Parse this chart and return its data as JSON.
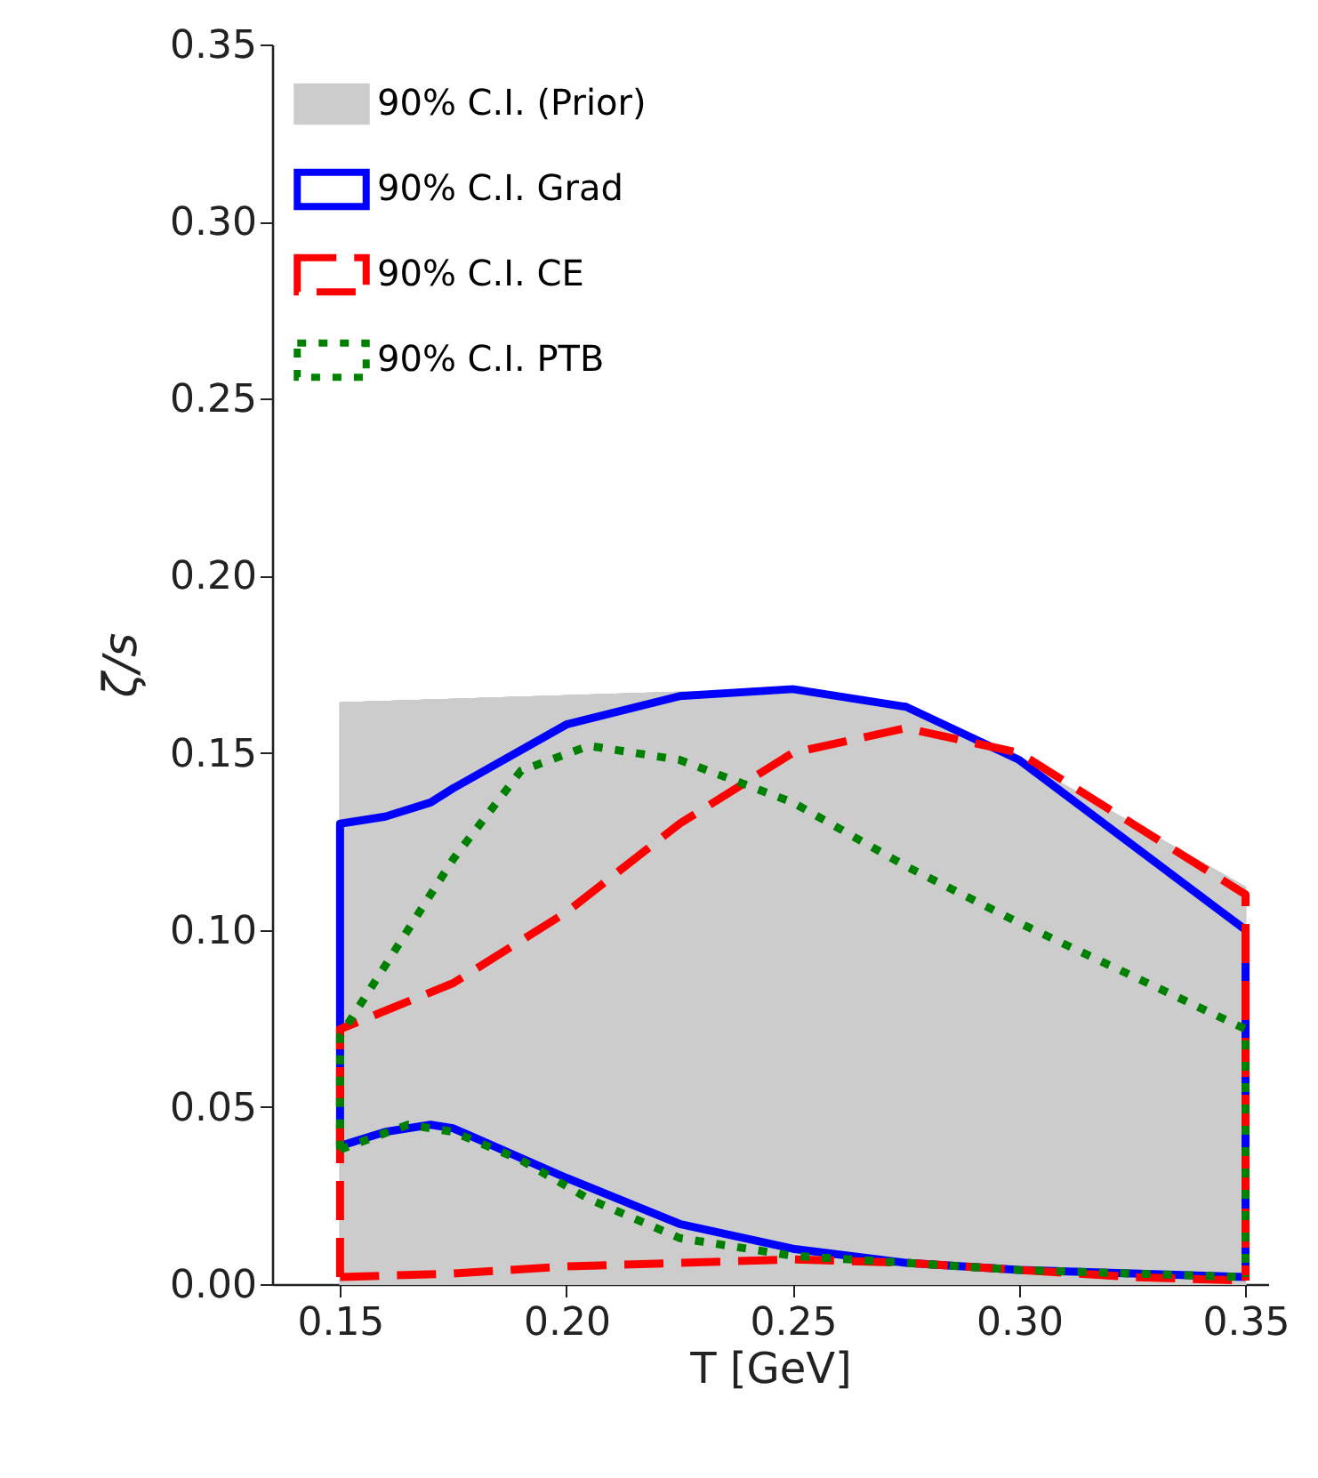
{
  "chart_data": {
    "type": "line",
    "xlabel": "T [GeV]",
    "ylabel": "ζ/s",
    "xlim": [
      0.135,
      0.355
    ],
    "ylim": [
      0,
      0.35
    ],
    "xticks": [
      0.15,
      {
        "value": 0.2,
        "label": "0.20"
      },
      0.25,
      {
        "value": 0.3,
        "label": "0.30"
      },
      0.35
    ],
    "yticks": [
      {
        "value": 0,
        "label": "0.00"
      },
      0.05,
      {
        "value": 0.1,
        "label": "0.10"
      },
      0.15,
      {
        "value": 0.2,
        "label": "0.20"
      },
      0.25,
      {
        "value": 0.3,
        "label": "0.30"
      },
      0.35
    ],
    "legend": "top left",
    "grid": false,
    "series": [
      {
        "name": "90% C.I. (Prior)",
        "type": "area",
        "color": "#cccccc",
        "line_style": "solid",
        "x": [
          0.15,
          0.15,
          0.175,
          0.2,
          0.225,
          0.25,
          0.275,
          0.3,
          0.325,
          0.35,
          0.35
        ],
        "values": [
          0,
          0.164,
          0.165,
          0.166,
          0.167,
          0.167,
          0.162,
          0.148,
          0.13,
          0.112,
          0
        ]
      },
      {
        "name": "90% C.I. Grad",
        "color": "#0000ff",
        "line_style": "solid",
        "x": [
          0.15,
          0.15,
          0.16,
          0.17,
          0.175,
          0.2,
          0.225,
          0.25,
          0.275,
          0.3,
          0.325,
          0.35,
          0.35
        ],
        "values": [
          0.039,
          0.13,
          0.132,
          0.136,
          0.14,
          0.158,
          0.166,
          0.168,
          0.163,
          0.148,
          0.124,
          0.1,
          0.002
        ]
      },
      {
        "color": "#0000ff",
        "line_style": "solid",
        "x": [
          0.15,
          0.16,
          0.17,
          0.175,
          0.2,
          0.225,
          0.25,
          0.275,
          0.3,
          0.325,
          0.35
        ],
        "values": [
          0.039,
          0.043,
          0.045,
          0.044,
          0.03,
          0.017,
          0.01,
          0.006,
          0.004,
          0.003,
          0.002
        ]
      },
      {
        "name": "90% C.I. CE",
        "color": "#ff0000",
        "line_style": "dashed",
        "x": [
          0.15,
          0.15,
          0.175,
          0.2,
          0.225,
          0.25,
          0.275,
          0.3,
          0.325,
          0.35,
          0.35
        ],
        "values": [
          0.002,
          0.072,
          0.085,
          0.105,
          0.13,
          0.15,
          0.157,
          0.15,
          0.13,
          0.11,
          0.001
        ]
      },
      {
        "color": "#ff0000",
        "line_style": "dashed",
        "x": [
          0.15,
          0.175,
          0.2,
          0.225,
          0.25,
          0.275,
          0.3,
          0.325,
          0.35
        ],
        "values": [
          0.002,
          0.003,
          0.005,
          0.006,
          0.007,
          0.006,
          0.004,
          0.002,
          0.001
        ]
      },
      {
        "name": "90% C.I. PTB",
        "color": "#008000",
        "line_style": "dotted",
        "x": [
          0.15,
          0.15,
          0.165,
          0.175,
          0.19,
          0.205,
          0.225,
          0.25,
          0.275,
          0.3,
          0.325,
          0.35,
          0.35
        ],
        "values": [
          0.038,
          0.07,
          0.1,
          0.12,
          0.145,
          0.152,
          0.148,
          0.136,
          0.118,
          0.102,
          0.087,
          0.072,
          0.002
        ]
      },
      {
        "color": "#008000",
        "line_style": "dotted",
        "x": [
          0.15,
          0.165,
          0.175,
          0.19,
          0.205,
          0.225,
          0.25,
          0.275,
          0.3,
          0.325,
          0.35
        ],
        "values": [
          0.038,
          0.045,
          0.043,
          0.035,
          0.024,
          0.013,
          0.008,
          0.006,
          0.004,
          0.003,
          0.002
        ]
      }
    ]
  }
}
